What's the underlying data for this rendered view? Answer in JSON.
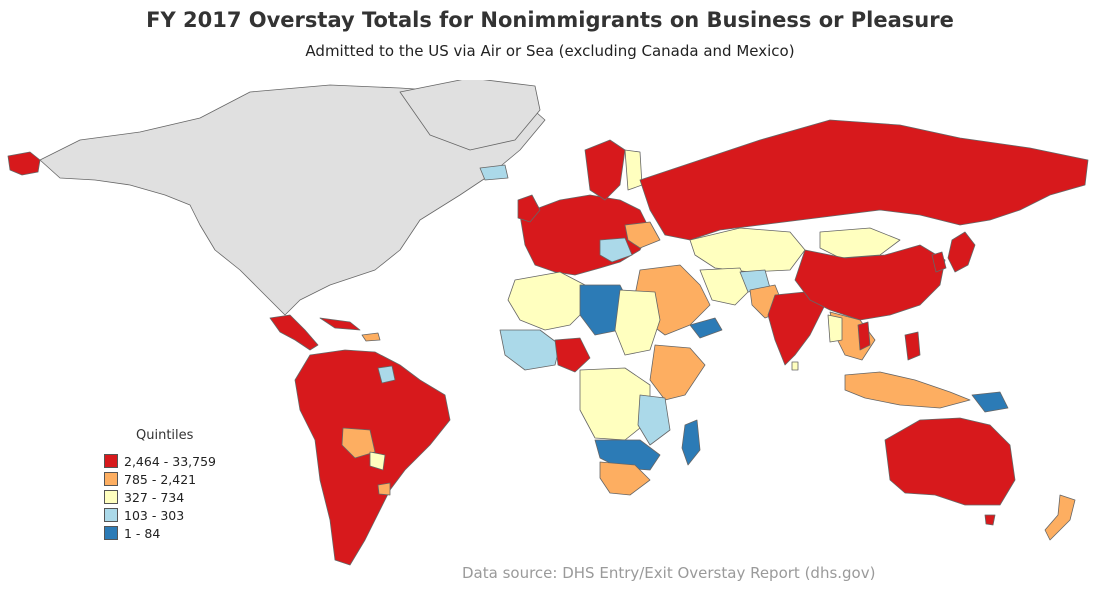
{
  "title": "FY 2017 Overstay Totals for Nonimmigrants on Business or Pleasure",
  "subtitle": "Admitted to the US via Air or Sea (excluding Canada and Mexico)",
  "legend": {
    "title": "Quintiles",
    "items": [
      {
        "label": "2,464 - 33,759",
        "color": "#d7191c"
      },
      {
        "label": "785 - 2,421",
        "color": "#fdae61"
      },
      {
        "label": "327 - 734",
        "color": "#ffffbf"
      },
      {
        "label": "103 - 303",
        "color": "#abd9e9"
      },
      {
        "label": "1 - 84",
        "color": "#2c7bb6"
      }
    ]
  },
  "colors": {
    "excluded_land": "#e0e0e0",
    "border": "#666666",
    "q1": "#d7191c",
    "q2": "#fdae61",
    "q3": "#ffffbf",
    "q4": "#abd9e9",
    "q5": "#2c7bb6"
  },
  "source": "Data source: DHS Entry/Exit Overstay Report (dhs.gov)"
}
